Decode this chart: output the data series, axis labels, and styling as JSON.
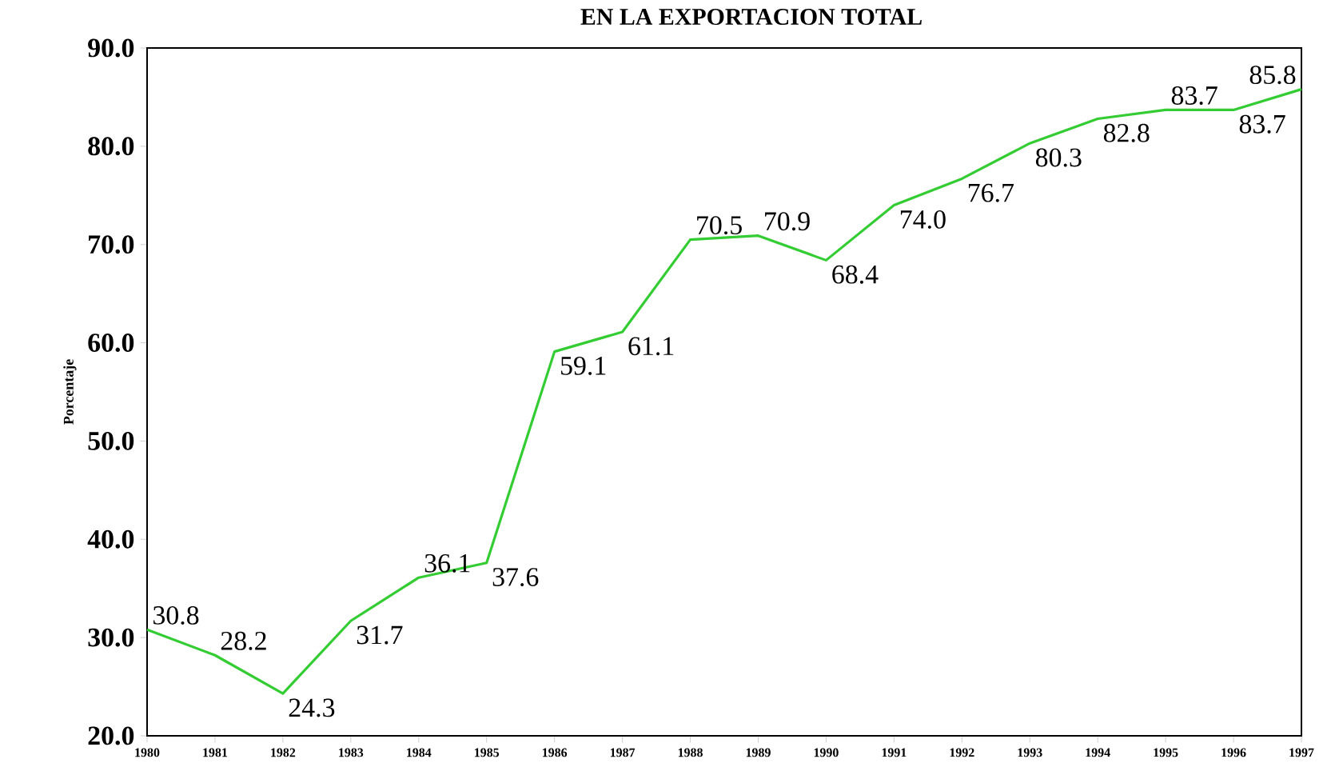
{
  "chart_data": {
    "type": "line",
    "title": "EN LA EXPORTACION TOTAL",
    "ylabel": "Porcentaje",
    "categories": [
      "1980",
      "1981",
      "1982",
      "1983",
      "1984",
      "1985",
      "1986",
      "1987",
      "1988",
      "1989",
      "1990",
      "1991",
      "1992",
      "1993",
      "1994",
      "1995",
      "1996",
      "1997"
    ],
    "values": [
      30.8,
      28.2,
      24.3,
      31.7,
      36.1,
      37.6,
      59.1,
      61.1,
      70.5,
      70.9,
      68.4,
      74.0,
      76.7,
      80.3,
      82.8,
      83.7,
      83.7,
      85.8
    ],
    "value_labels": [
      "30.8",
      "28.2",
      "24.3",
      "31.7",
      "36.1",
      "37.6",
      "59.1",
      "61.1",
      "70.5",
      "70.9",
      "68.4",
      "74.0",
      "76.7",
      "80.3",
      "82.8",
      "83.7",
      "83.7",
      "85.8"
    ],
    "color": "#33cc33",
    "marker": "none",
    "line_style": "solid",
    "grid": false,
    "ylim": [
      20,
      90
    ],
    "yticks": [
      {
        "value": 20,
        "label": "20.0"
      },
      {
        "value": 30,
        "label": "30.0"
      },
      {
        "value": 40,
        "label": "40.0"
      },
      {
        "value": 50,
        "label": "50.0"
      },
      {
        "value": 60,
        "label": "60.0"
      },
      {
        "value": 70,
        "label": "70.0"
      },
      {
        "value": 80,
        "label": "80.0"
      },
      {
        "value": 90,
        "label": "90.0"
      }
    ]
  }
}
